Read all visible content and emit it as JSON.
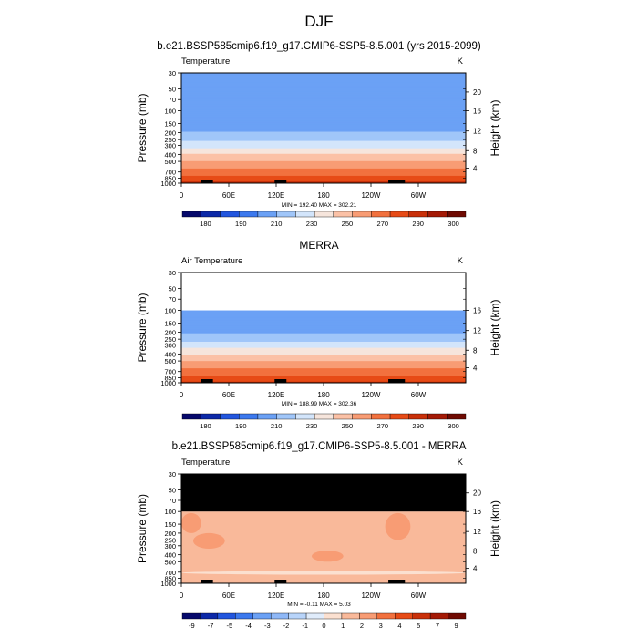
{
  "page": {
    "title": "DJF"
  },
  "chart_data": [
    {
      "type": "heatmap",
      "title": "b.e21.BSSP585cmip6.f19_g17.CMIP6-SSP5-8.5.001 (yrs 2015-2099)",
      "left_label": "Temperature",
      "units": "K",
      "xlabel": "",
      "ylabel": "Pressure (mb)",
      "y2label": "Height (km)",
      "x_ticks": [
        "0",
        "60E",
        "120E",
        "180",
        "120W",
        "60W"
      ],
      "x_tick_values": [
        0,
        60,
        120,
        180,
        240,
        300
      ],
      "xlim": [
        0,
        360
      ],
      "y_ticks": [
        "30",
        "50",
        "70",
        "100",
        "150",
        "200",
        "250",
        "300",
        "400",
        "500",
        "700",
        "850",
        "1000"
      ],
      "y_tick_values": [
        30,
        50,
        70,
        100,
        150,
        200,
        250,
        300,
        400,
        500,
        700,
        850,
        1000
      ],
      "ylim": [
        30,
        1000
      ],
      "y_scale": "log",
      "y2_ticks": [
        "20",
        "16",
        "12",
        "8",
        "4"
      ],
      "data_top_mb": 30,
      "summary": "MIN = 192.40  MAX = 302.21",
      "colorbar_labels": [
        "180",
        "190",
        "210",
        "230",
        "250",
        "270",
        "290",
        "300"
      ],
      "colorbar_colors": [
        "#06096b",
        "#0c29a8",
        "#2256de",
        "#3c79ee",
        "#6ba1f5",
        "#a0c6f9",
        "#d3e5fb",
        "#f6e5dc",
        "#fbc1a6",
        "#f89c74",
        "#f2713e",
        "#e74b16",
        "#c93009",
        "#a41a06",
        "#6f0a02"
      ],
      "profile": [
        {
          "p": 30,
          "t": 211
        },
        {
          "p": 50,
          "t": 213
        },
        {
          "p": 70,
          "t": 214
        },
        {
          "p": 100,
          "t": 213
        },
        {
          "p": 150,
          "t": 215
        },
        {
          "p": 200,
          "t": 220
        },
        {
          "p": 250,
          "t": 228
        },
        {
          "p": 300,
          "t": 236
        },
        {
          "p": 400,
          "t": 250
        },
        {
          "p": 500,
          "t": 261
        },
        {
          "p": 700,
          "t": 276
        },
        {
          "p": 850,
          "t": 284
        },
        {
          "p": 1000,
          "t": 292
        }
      ]
    },
    {
      "type": "heatmap",
      "title": "MERRA",
      "left_label": "Air Temperature",
      "units": "K",
      "xlabel": "",
      "ylabel": "Pressure (mb)",
      "y2label": "Height (km)",
      "x_ticks": [
        "0",
        "60E",
        "120E",
        "180",
        "120W",
        "60W"
      ],
      "x_tick_values": [
        0,
        60,
        120,
        180,
        240,
        300
      ],
      "xlim": [
        0,
        360
      ],
      "y_ticks": [
        "30",
        "50",
        "70",
        "100",
        "150",
        "200",
        "250",
        "300",
        "400",
        "500",
        "700",
        "850",
        "1000"
      ],
      "y_tick_values": [
        30,
        50,
        70,
        100,
        150,
        200,
        250,
        300,
        400,
        500,
        700,
        850,
        1000
      ],
      "ylim": [
        30,
        1000
      ],
      "y_scale": "log",
      "y2_ticks": [
        "16",
        "12",
        "8",
        "4"
      ],
      "data_top_mb": 100,
      "summary": "MIN = 188.99  MAX = 302.36",
      "colorbar_labels": [
        "180",
        "190",
        "210",
        "230",
        "250",
        "270",
        "290",
        "300"
      ],
      "colorbar_colors": [
        "#06096b",
        "#0c29a8",
        "#2256de",
        "#3c79ee",
        "#6ba1f5",
        "#a0c6f9",
        "#d3e5fb",
        "#f6e5dc",
        "#fbc1a6",
        "#f89c74",
        "#f2713e",
        "#e74b16",
        "#c93009",
        "#a41a06",
        "#6f0a02"
      ],
      "profile": [
        {
          "p": 100,
          "t": 210
        },
        {
          "p": 150,
          "t": 214
        },
        {
          "p": 200,
          "t": 219
        },
        {
          "p": 250,
          "t": 227
        },
        {
          "p": 300,
          "t": 235
        },
        {
          "p": 400,
          "t": 249
        },
        {
          "p": 500,
          "t": 260
        },
        {
          "p": 700,
          "t": 275
        },
        {
          "p": 850,
          "t": 283
        },
        {
          "p": 1000,
          "t": 291
        }
      ]
    },
    {
      "type": "heatmap",
      "title": "b.e21.BSSP585cmip6.f19_g17.CMIP6-SSP5-8.5.001 - MERRA",
      "left_label": "Temperature",
      "units": "K",
      "xlabel": "",
      "ylabel": "Pressure (mb)",
      "y2label": "Height (km)",
      "x_ticks": [
        "0",
        "60E",
        "120E",
        "180",
        "120W",
        "60W"
      ],
      "x_tick_values": [
        0,
        60,
        120,
        180,
        240,
        300
      ],
      "xlim": [
        0,
        360
      ],
      "y_ticks": [
        "30",
        "50",
        "70",
        "100",
        "150",
        "200",
        "250",
        "300",
        "400",
        "500",
        "700",
        "850",
        "1000"
      ],
      "y_tick_values": [
        30,
        50,
        70,
        100,
        150,
        200,
        250,
        300,
        400,
        500,
        700,
        850,
        1000
      ],
      "ylim": [
        30,
        1000
      ],
      "y_scale": "log",
      "y2_ticks": [
        "20",
        "16",
        "12",
        "8",
        "4"
      ],
      "missing_above_mb": 100,
      "missing_color": "#000000",
      "summary": "MIN =  -0.11  MAX =   5.03",
      "colorbar_labels": [
        "-9",
        "-7",
        "-5",
        "-4",
        "-3",
        "-2",
        "-1",
        "0",
        "1",
        "2",
        "3",
        "4",
        "5",
        "7",
        "9"
      ],
      "colorbar_colors": [
        "#06096b",
        "#0c29a8",
        "#2256de",
        "#3c79ee",
        "#6ba1f5",
        "#8fb8f7",
        "#b8d4fa",
        "#e0ecfb",
        "#fbe0d0",
        "#f9b99a",
        "#f89c74",
        "#f2713e",
        "#e74b16",
        "#c93009",
        "#a41a06",
        "#6f0a02"
      ],
      "background_value": 2,
      "background_color": "#f9b99a",
      "anomaly_patches": [
        {
          "value": 3,
          "color": "#f89c74",
          "lon": [
            165,
            205
          ],
          "p": [
            350,
            500
          ]
        },
        {
          "value": 3,
          "color": "#f89c74",
          "lon": [
            15,
            55
          ],
          "p": [
            200,
            330
          ]
        },
        {
          "value": 3,
          "color": "#f89c74",
          "lon": [
            258,
            290
          ],
          "p": [
            105,
            250
          ]
        },
        {
          "value": 3,
          "color": "#f89c74",
          "lon": [
            0,
            25
          ],
          "p": [
            105,
            200
          ]
        },
        {
          "value": 1,
          "color": "#fbe0d0",
          "lon": [
            0,
            360
          ],
          "p": [
            690,
            740
          ]
        }
      ]
    }
  ]
}
